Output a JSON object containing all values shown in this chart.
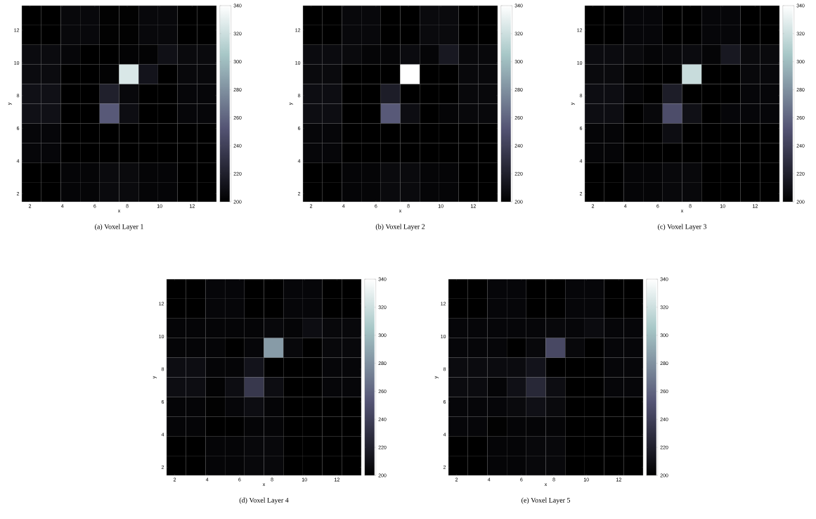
{
  "chart_data": [
    {
      "type": "heatmap",
      "title": "(a) Voxel Layer 1",
      "xlabel": "x",
      "ylabel": "y",
      "x": [
        2.1,
        3.3,
        4.5,
        5.7,
        6.9,
        8.1,
        9.3,
        10.5,
        11.7,
        12.9
      ],
      "y": [
        12.9,
        11.7,
        10.5,
        9.3,
        8.1,
        6.9,
        5.7,
        4.5,
        3.3,
        2.1
      ],
      "cells": [
        [
          200,
          200,
          205,
          205,
          201,
          201,
          205,
          205,
          200,
          200
        ],
        [
          200,
          200,
          205,
          205,
          201,
          201,
          205,
          205,
          200,
          200
        ],
        [
          207,
          207,
          204,
          200,
          200,
          202,
          202,
          210,
          206,
          206
        ],
        [
          207,
          207,
          200,
          200,
          202,
          325,
          212,
          200,
          205,
          205
        ],
        [
          210,
          210,
          200,
          200,
          220,
          205,
          200,
          200,
          204,
          204
        ],
        [
          210,
          210,
          200,
          200,
          255,
          208,
          200,
          200,
          204,
          204
        ],
        [
          204,
          204,
          200,
          200,
          200,
          200,
          200,
          200,
          200,
          200
        ],
        [
          204,
          204,
          200,
          200,
          200,
          200,
          200,
          200,
          200,
          200
        ],
        [
          200,
          200,
          203,
          203,
          206,
          206,
          203,
          203,
          200,
          200
        ],
        [
          200,
          200,
          203,
          203,
          206,
          206,
          203,
          203,
          200,
          200
        ]
      ],
      "clim": [
        200,
        340
      ],
      "cticks": [
        200,
        220,
        240,
        260,
        280,
        300,
        320,
        340
      ],
      "xlim": [
        1.5,
        13.5
      ],
      "ylim": [
        1.5,
        13.5
      ],
      "xticks": [
        2,
        4,
        6,
        8,
        10,
        12
      ],
      "yticks": [
        2,
        4,
        6,
        8,
        10,
        12
      ]
    },
    {
      "type": "heatmap",
      "title": "(b) Voxel Layer 2",
      "xlabel": "x",
      "ylabel": "y",
      "x": [
        2.1,
        3.3,
        4.5,
        5.7,
        6.9,
        8.1,
        9.3,
        10.5,
        11.7,
        12.9
      ],
      "y": [
        12.9,
        11.7,
        10.5,
        9.3,
        8.1,
        6.9,
        5.7,
        4.5,
        3.3,
        2.1
      ],
      "cells": [
        [
          200,
          200,
          205,
          205,
          200,
          200,
          206,
          206,
          200,
          200
        ],
        [
          200,
          200,
          205,
          205,
          200,
          200,
          206,
          206,
          200,
          200
        ],
        [
          207,
          207,
          206,
          203,
          203,
          207,
          203,
          215,
          205,
          205
        ],
        [
          206,
          206,
          200,
          200,
          200,
          340,
          200,
          200,
          205,
          205
        ],
        [
          208,
          208,
          200,
          200,
          218,
          200,
          200,
          200,
          205,
          205
        ],
        [
          208,
          208,
          200,
          200,
          255,
          208,
          200,
          203,
          205,
          205
        ],
        [
          204,
          204,
          200,
          200,
          200,
          200,
          200,
          200,
          200,
          200
        ],
        [
          204,
          204,
          200,
          200,
          200,
          200,
          200,
          200,
          200,
          200
        ],
        [
          200,
          200,
          203,
          203,
          206,
          206,
          203,
          203,
          200,
          200
        ],
        [
          200,
          200,
          203,
          203,
          206,
          206,
          203,
          203,
          200,
          200
        ]
      ],
      "clim": [
        200,
        340
      ],
      "cticks": [
        200,
        220,
        240,
        260,
        280,
        300,
        320,
        340
      ],
      "xlim": [
        1.5,
        13.5
      ],
      "ylim": [
        1.5,
        13.5
      ],
      "xticks": [
        2,
        4,
        6,
        8,
        10,
        12
      ],
      "yticks": [
        2,
        4,
        6,
        8,
        10,
        12
      ]
    },
    {
      "type": "heatmap",
      "title": "(c) Voxel Layer 3",
      "xlabel": "x",
      "ylabel": "y",
      "x": [
        2.1,
        3.3,
        4.5,
        5.7,
        6.9,
        8.1,
        9.3,
        10.5,
        11.7,
        12.9
      ],
      "y": [
        12.9,
        11.7,
        10.5,
        9.3,
        8.1,
        6.9,
        5.7,
        4.5,
        3.3,
        2.1
      ],
      "cells": [
        [
          200,
          200,
          204,
          204,
          200,
          200,
          204,
          204,
          200,
          200
        ],
        [
          200,
          200,
          204,
          204,
          200,
          200,
          204,
          204,
          200,
          200
        ],
        [
          207,
          207,
          206,
          203,
          205,
          207,
          203,
          215,
          206,
          206
        ],
        [
          206,
          206,
          202,
          200,
          200,
          318,
          200,
          200,
          205,
          205
        ],
        [
          208,
          208,
          203,
          200,
          218,
          200,
          200,
          200,
          204,
          204
        ],
        [
          208,
          208,
          200,
          205,
          248,
          210,
          200,
          204,
          204,
          204
        ],
        [
          203,
          203,
          200,
          200,
          208,
          200,
          200,
          200,
          200,
          200
        ],
        [
          203,
          203,
          200,
          200,
          200,
          200,
          200,
          200,
          200,
          200
        ],
        [
          200,
          200,
          203,
          203,
          205,
          205,
          200,
          200,
          200,
          200
        ],
        [
          200,
          200,
          203,
          203,
          205,
          205,
          200,
          200,
          200,
          200
        ]
      ],
      "clim": [
        200,
        340
      ],
      "cticks": [
        200,
        220,
        240,
        260,
        280,
        300,
        320,
        340
      ],
      "xlim": [
        1.5,
        13.5
      ],
      "ylim": [
        1.5,
        13.5
      ],
      "xticks": [
        2,
        4,
        6,
        8,
        10,
        12
      ],
      "yticks": [
        2,
        4,
        6,
        8,
        10,
        12
      ]
    },
    {
      "type": "heatmap",
      "title": "(d) Voxel Layer 4",
      "xlabel": "x",
      "ylabel": "y",
      "x": [
        2.1,
        3.3,
        4.5,
        5.7,
        6.9,
        8.1,
        9.3,
        10.5,
        11.7,
        12.9
      ],
      "y": [
        12.9,
        11.7,
        10.5,
        9.3,
        8.1,
        6.9,
        5.7,
        4.5,
        3.3,
        2.1
      ],
      "cells": [
        [
          200,
          200,
          204,
          204,
          200,
          200,
          204,
          204,
          200,
          200
        ],
        [
          200,
          200,
          204,
          204,
          200,
          200,
          204,
          204,
          200,
          200
        ],
        [
          203,
          203,
          203,
          203,
          203,
          205,
          203,
          208,
          205,
          205
        ],
        [
          203,
          203,
          203,
          200,
          204,
          285,
          205,
          200,
          205,
          205
        ],
        [
          208,
          208,
          203,
          203,
          212,
          200,
          200,
          200,
          204,
          204
        ],
        [
          208,
          208,
          202,
          208,
          235,
          208,
          200,
          200,
          204,
          204
        ],
        [
          203,
          203,
          201,
          204,
          208,
          203,
          200,
          200,
          200,
          200
        ],
        [
          203,
          203,
          200,
          200,
          203,
          203,
          200,
          200,
          200,
          200
        ],
        [
          200,
          200,
          203,
          203,
          205,
          205,
          200,
          200,
          200,
          200
        ],
        [
          200,
          200,
          203,
          203,
          205,
          205,
          200,
          200,
          200,
          200
        ]
      ],
      "clim": [
        200,
        340
      ],
      "cticks": [
        200,
        220,
        240,
        260,
        280,
        300,
        320,
        340
      ],
      "xlim": [
        1.5,
        13.5
      ],
      "ylim": [
        1.5,
        13.5
      ],
      "xticks": [
        2,
        4,
        6,
        8,
        10,
        12
      ],
      "yticks": [
        2,
        4,
        6,
        8,
        10,
        12
      ]
    },
    {
      "type": "heatmap",
      "title": "(e) Voxel Layer 5",
      "xlabel": "x",
      "ylabel": "y",
      "x": [
        2.1,
        3.3,
        4.5,
        5.7,
        6.9,
        8.1,
        9.3,
        10.5,
        11.7,
        12.9
      ],
      "y": [
        12.9,
        11.7,
        10.5,
        9.3,
        8.1,
        6.9,
        5.7,
        4.5,
        3.3,
        2.1
      ],
      "cells": [
        [
          200,
          200,
          204,
          204,
          200,
          200,
          204,
          204,
          200,
          200
        ],
        [
          200,
          200,
          204,
          204,
          200,
          200,
          204,
          204,
          200,
          200
        ],
        [
          204,
          204,
          204,
          204,
          204,
          205,
          204,
          207,
          204,
          204
        ],
        [
          204,
          204,
          204,
          200,
          205,
          245,
          205,
          200,
          204,
          204
        ],
        [
          207,
          207,
          207,
          207,
          212,
          200,
          200,
          200,
          204,
          204
        ],
        [
          207,
          207,
          203,
          210,
          225,
          208,
          200,
          200,
          204,
          204
        ],
        [
          204,
          204,
          204,
          206,
          210,
          206,
          200,
          200,
          200,
          200
        ],
        [
          204,
          204,
          201,
          203,
          203,
          203,
          200,
          200,
          200,
          200
        ],
        [
          200,
          200,
          203,
          203,
          205,
          205,
          200,
          200,
          200,
          200
        ],
        [
          200,
          200,
          203,
          203,
          205,
          205,
          200,
          200,
          200,
          200
        ]
      ],
      "clim": [
        200,
        340
      ],
      "cticks": [
        200,
        220,
        240,
        260,
        280,
        300,
        320,
        340
      ],
      "xlim": [
        1.5,
        13.5
      ],
      "ylim": [
        1.5,
        13.5
      ],
      "xticks": [
        2,
        4,
        6,
        8,
        10,
        12
      ],
      "yticks": [
        2,
        4,
        6,
        8,
        10,
        12
      ]
    }
  ]
}
